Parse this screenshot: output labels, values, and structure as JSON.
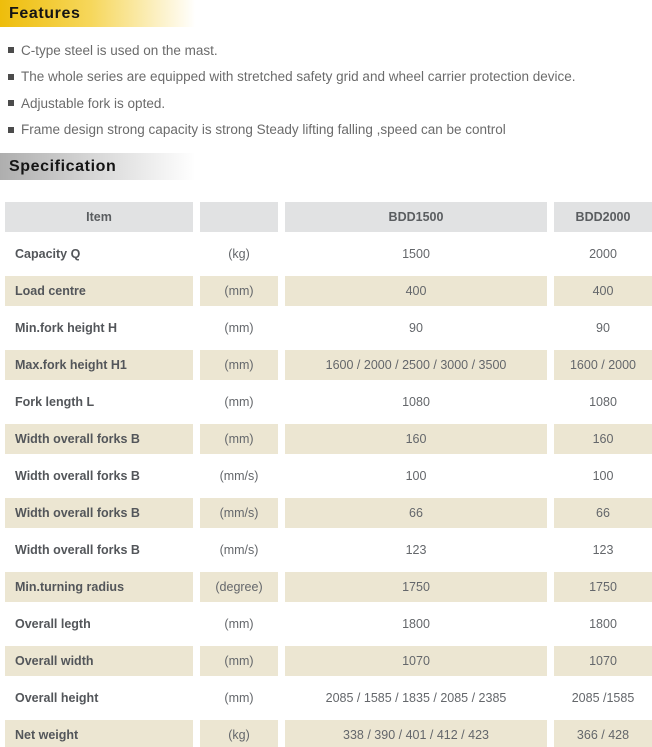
{
  "features": {
    "title": "Features",
    "accent_color": "#eebd0b",
    "items": [
      "C-type steel is used on the mast.",
      "The whole series are equipped with stretched safety grid and wheel carrier protection device.",
      "Adjustable fork is opted.",
      "Frame design strong capacity is strong Steady lifting falling ,speed can be control"
    ]
  },
  "specification": {
    "title": "Specification",
    "accent_color": "#aeaeae",
    "table": {
      "header_bg": "#e1e2e3",
      "stripe_bg": "#ece6d2",
      "columns": [
        "Item",
        "",
        "BDD1500",
        "BDD2000"
      ],
      "rows": [
        {
          "item": "Capacity Q",
          "unit": "(kg)",
          "bdd1500": "1500",
          "bdd2000": "2000"
        },
        {
          "item": "Load centre",
          "unit": "(mm)",
          "bdd1500": "400",
          "bdd2000": "400"
        },
        {
          "item": "Min.fork height H",
          "unit": "(mm)",
          "bdd1500": "90",
          "bdd2000": "90"
        },
        {
          "item": "Max.fork height H1",
          "unit": "(mm)",
          "bdd1500": "1600 / 2000 / 2500 / 3000 / 3500",
          "bdd2000": "1600 / 2000"
        },
        {
          "item": "Fork length L",
          "unit": "(mm)",
          "bdd1500": "1080",
          "bdd2000": "1080"
        },
        {
          "item": "Width overall forks B",
          "unit": "(mm)",
          "bdd1500": "160",
          "bdd2000": "160"
        },
        {
          "item": "Width overall forks B",
          "unit": "(mm/s)",
          "bdd1500": "100",
          "bdd2000": "100"
        },
        {
          "item": "Width overall forks B",
          "unit": "(mm/s)",
          "bdd1500": "66",
          "bdd2000": "66"
        },
        {
          "item": "Width overall forks B",
          "unit": "(mm/s)",
          "bdd1500": "123",
          "bdd2000": "123"
        },
        {
          "item": "Min.turning radius",
          "unit": "(degree)",
          "bdd1500": "1750",
          "bdd2000": "1750"
        },
        {
          "item": "Overall legth",
          "unit": "(mm)",
          "bdd1500": "1800",
          "bdd2000": "1800"
        },
        {
          "item": "Overall width",
          "unit": "(mm)",
          "bdd1500": "1070",
          "bdd2000": "1070"
        },
        {
          "item": "Overall height",
          "unit": "(mm)",
          "bdd1500": "2085 / 1585 / 1835 / 2085 / 2385",
          "bdd2000": "2085 /1585"
        },
        {
          "item": "Net weight",
          "unit": "(kg)",
          "bdd1500": "338 / 390 / 401 / 412 / 423",
          "bdd2000": "366 / 428"
        }
      ]
    }
  }
}
